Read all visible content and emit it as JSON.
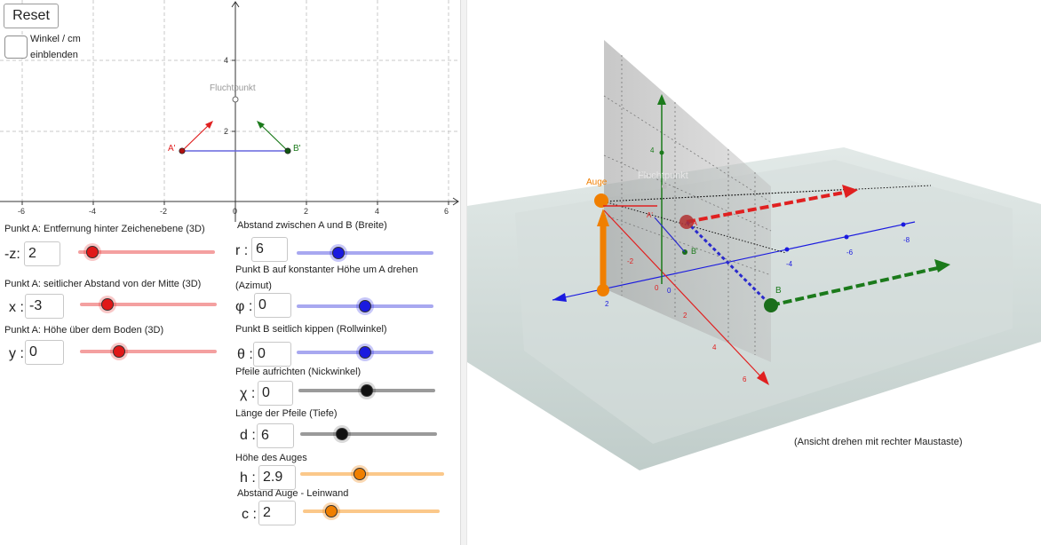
{
  "buttons": {
    "reset": "Reset"
  },
  "checkbox": {
    "label_line1": "Winkel / cm",
    "label_line2": "einblenden"
  },
  "graph2d": {
    "x_ticks": [
      "-6",
      "-4",
      "-2",
      "0",
      "2",
      "4",
      "6"
    ],
    "y_ticks": [
      "2",
      "4"
    ],
    "labels": {
      "fluchtpunkt": "Fluchtpunkt",
      "a_prime": "A'",
      "b_prime": "B'"
    }
  },
  "sliders_left": [
    {
      "label": "Punkt A: Entfernung hinter Zeichenebene (3D)",
      "var": "-z:",
      "value": "2",
      "level": 0.1
    },
    {
      "label": "Punkt A: seitlicher Abstand von der Mitte (3D)",
      "var": "x :",
      "value": "-3",
      "level": 0.2
    },
    {
      "label": "Punkt A: Höhe über dem Boden (3D)",
      "var": "y :",
      "value": "0",
      "level": 0.3
    }
  ],
  "sliders_right": [
    {
      "label": "Abstand zwischen A und B (Breite)",
      "var": "r :",
      "value": "6",
      "level": 0.3
    },
    {
      "label": "Punkt B auf konstanter Höhe um A drehen (Azimut)",
      "var": "φ :",
      "value": "0",
      "level": 0.5
    },
    {
      "label": "Punkt B seitlich kippen (Rollwinkel)",
      "var": "θ :",
      "value": "0",
      "level": 0.5
    },
    {
      "label": "Pfeile aufrichten (Nickwinkel)",
      "var": "χ :",
      "value": "0",
      "level": 0.5
    },
    {
      "label": "Länge der Pfeile (Tiefe)",
      "var": "d :",
      "value": "6",
      "level": 0.3
    },
    {
      "label": "Höhe des Auges",
      "var": "h :",
      "value": "2.9",
      "level": 0.4
    },
    {
      "label": "Abstand Auge - Leinwand",
      "var": "c :",
      "value": "2",
      "level": 0.2
    }
  ],
  "colors": {
    "red": "#e02020",
    "blue": "#1a1adf",
    "black": "#111111",
    "orange": "#f07f00",
    "green": "#1b7a1b"
  },
  "view3d": {
    "labels": {
      "auge": "Auge",
      "fluchtpunkt": "Fluchtpunkt",
      "a": "A",
      "b": "B",
      "b_prime": "B'",
      "a_prime": "A'"
    },
    "red_ticks": [
      "-2",
      "0",
      "2",
      "4",
      "6"
    ],
    "blue_ticks": [
      "2",
      "0",
      "-4",
      "-6",
      "-8"
    ],
    "green_ticks": [
      "4"
    ],
    "hint": "(Ansicht drehen mit rechter Maustaste)"
  }
}
